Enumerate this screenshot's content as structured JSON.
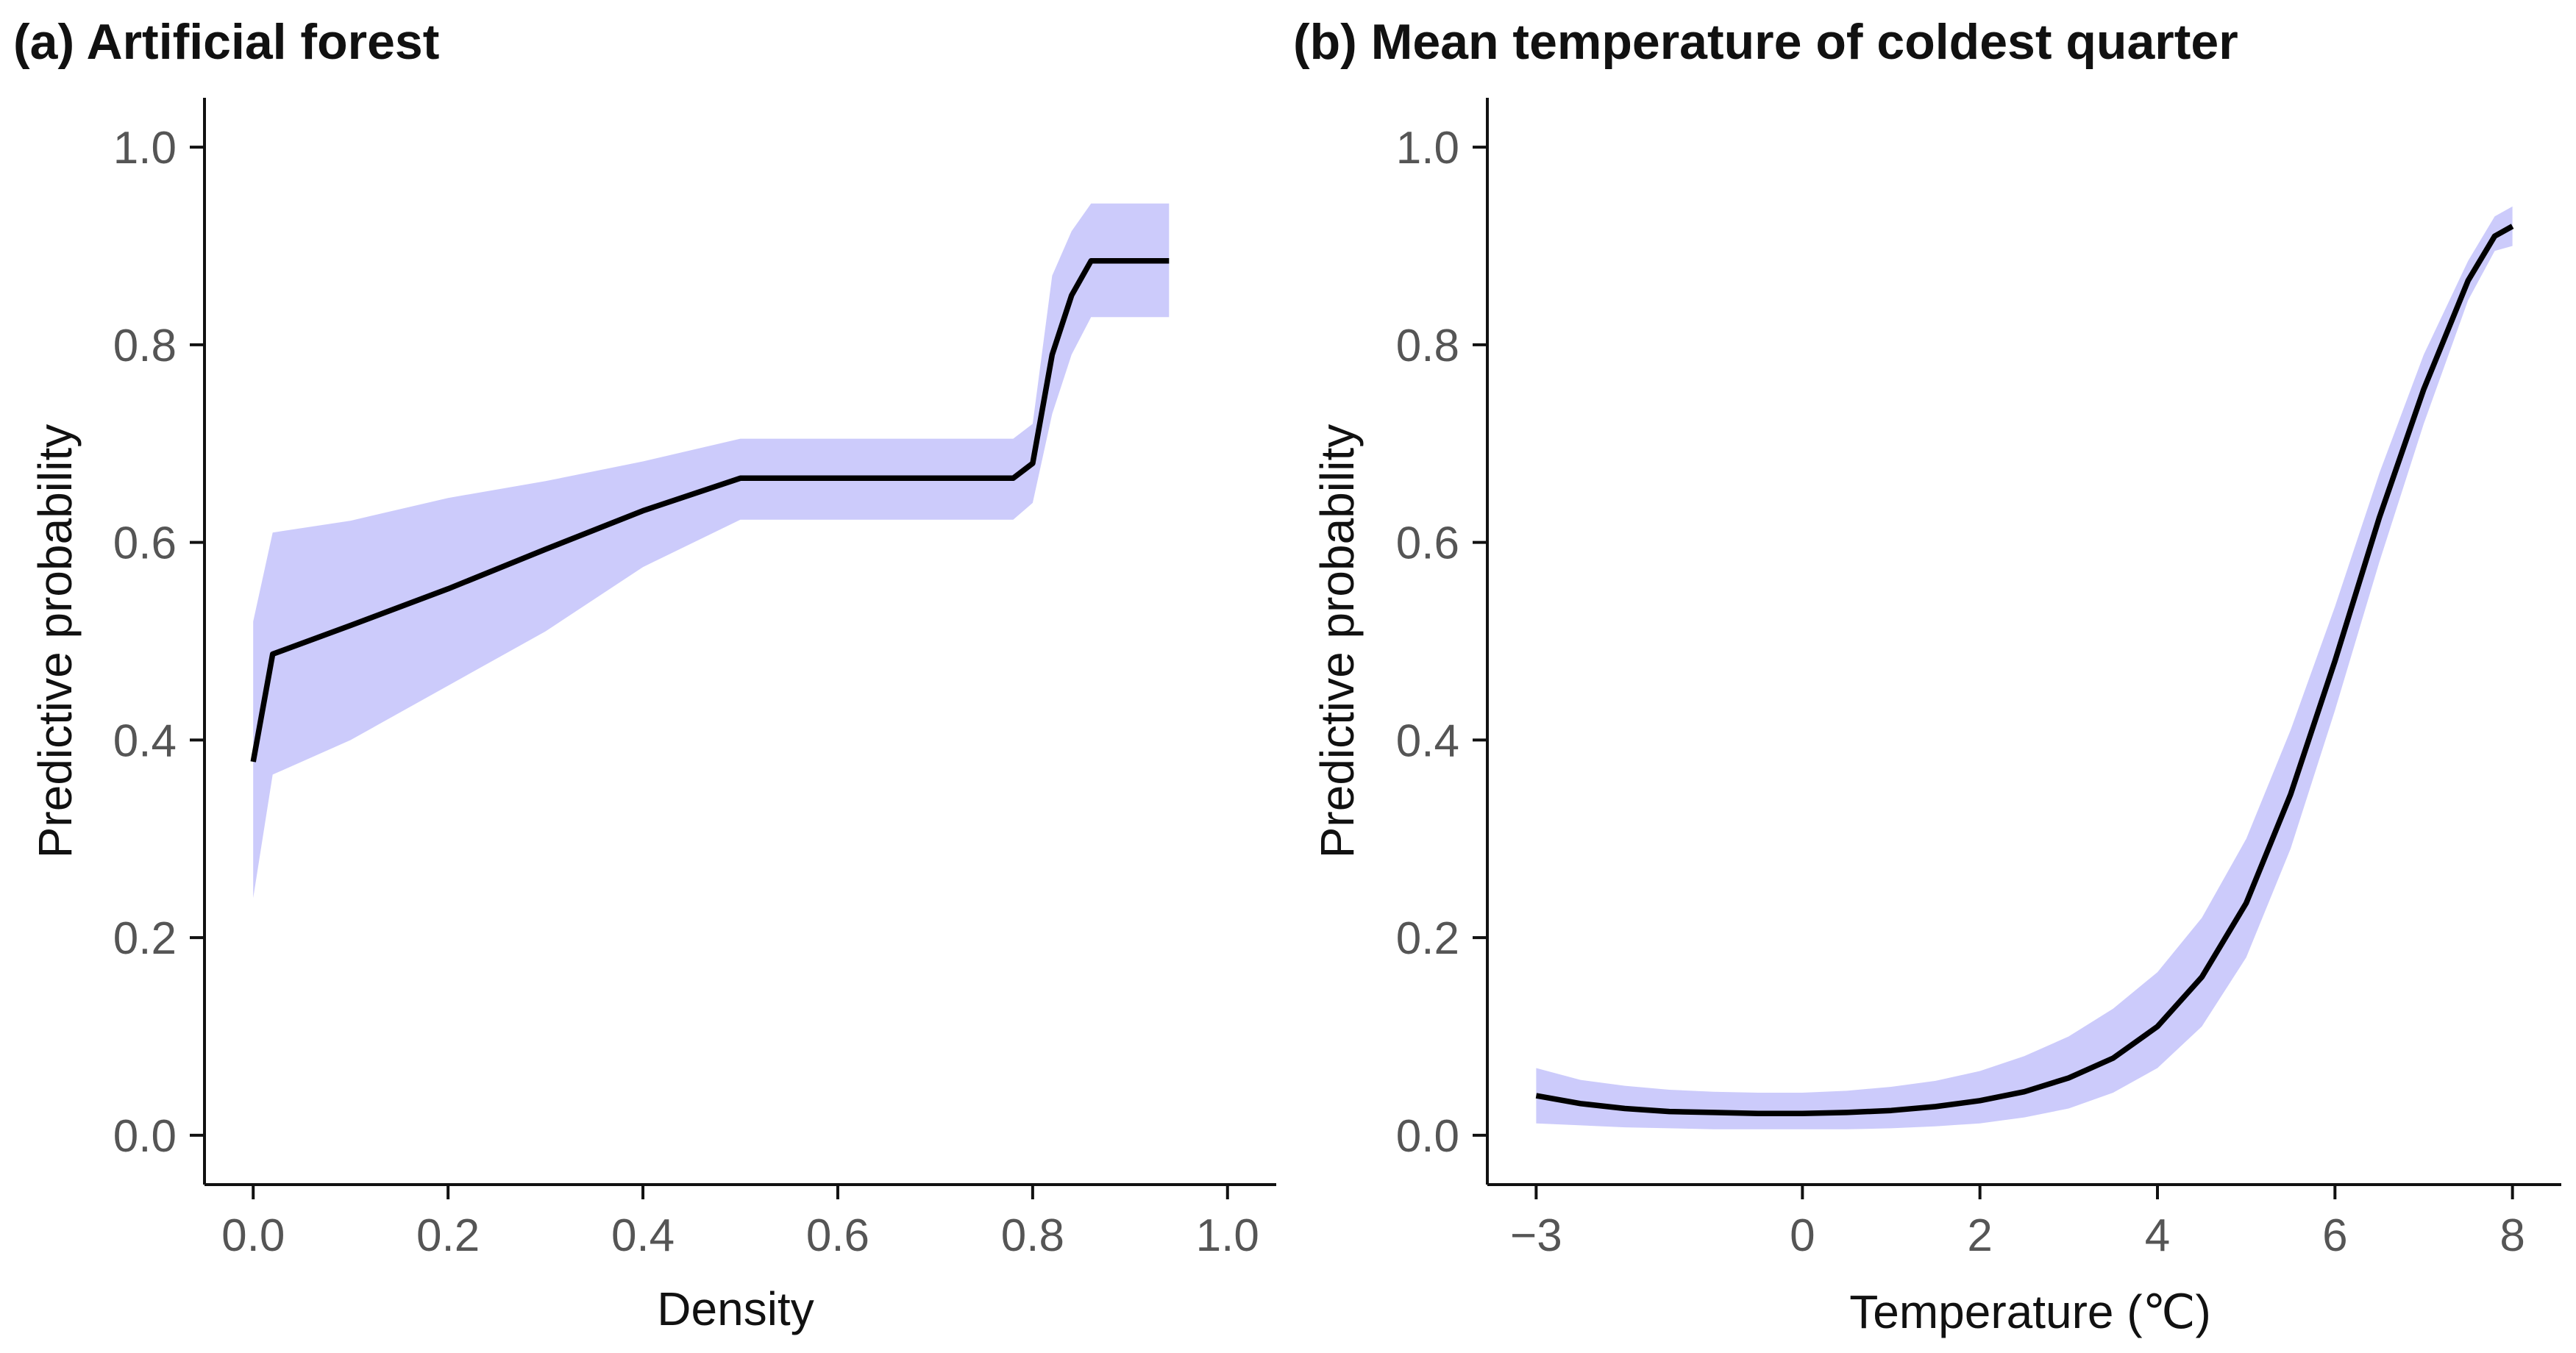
{
  "colors": {
    "band": "#cccbfb",
    "line": "#000000"
  },
  "chart_data": [
    {
      "type": "line",
      "title": "(a) Artificial forest",
      "xlabel": "Density",
      "ylabel": "Predictive probability",
      "xlim": [
        -0.05,
        1.05
      ],
      "ylim": [
        -0.05,
        1.05
      ],
      "xticks": [
        0.0,
        0.2,
        0.4,
        0.6,
        0.8,
        1.0
      ],
      "xtick_labels": [
        "0.0",
        "0.2",
        "0.4",
        "0.6",
        "0.8",
        "1.0"
      ],
      "yticks": [
        0.0,
        0.2,
        0.4,
        0.6,
        0.8,
        1.0
      ],
      "ytick_labels": [
        "0.0",
        "0.2",
        "0.4",
        "0.6",
        "0.8",
        "1.0"
      ],
      "series": [
        {
          "name": "Predictive probability",
          "x": [
            0.0,
            0.02,
            0.1,
            0.2,
            0.3,
            0.4,
            0.5,
            0.6,
            0.7,
            0.78,
            0.8,
            0.82,
            0.84,
            0.86,
            0.9,
            0.94
          ],
          "y": [
            0.378,
            0.487,
            0.516,
            0.553,
            0.593,
            0.632,
            0.665,
            0.665,
            0.665,
            0.665,
            0.68,
            0.79,
            0.85,
            0.885,
            0.885,
            0.885
          ],
          "lower": [
            0.24,
            0.365,
            0.4,
            0.455,
            0.51,
            0.575,
            0.623,
            0.623,
            0.623,
            0.623,
            0.64,
            0.73,
            0.79,
            0.828,
            0.828,
            0.828
          ],
          "upper": [
            0.52,
            0.61,
            0.622,
            0.645,
            0.662,
            0.682,
            0.705,
            0.705,
            0.705,
            0.705,
            0.72,
            0.87,
            0.915,
            0.943,
            0.943,
            0.943
          ]
        }
      ]
    },
    {
      "type": "line",
      "title": "(b) Mean temperature of coldest quarter",
      "xlabel": "Temperature (℃)",
      "ylabel": "Predictive probability",
      "xlim": [
        -3.55,
        8.55
      ],
      "ylim": [
        -0.05,
        1.05
      ],
      "xticks": [
        -3,
        0,
        2,
        4,
        6,
        8
      ],
      "xtick_labels": [
        "−3",
        "0",
        "2",
        "4",
        "6",
        "8"
      ],
      "yticks": [
        0.0,
        0.2,
        0.4,
        0.6,
        0.8,
        1.0
      ],
      "ytick_labels": [
        "0.0",
        "0.2",
        "0.4",
        "0.6",
        "0.8",
        "1.0"
      ],
      "series": [
        {
          "name": "Predictive probability",
          "x": [
            -3,
            -2.5,
            -2,
            -1.5,
            -1,
            -0.5,
            0,
            0.5,
            1,
            1.5,
            2,
            2.5,
            3,
            3.5,
            4,
            4.5,
            5,
            5.5,
            6,
            6.5,
            7,
            7.5,
            7.8,
            8.0
          ],
          "y": [
            0.04,
            0.032,
            0.027,
            0.024,
            0.023,
            0.022,
            0.022,
            0.023,
            0.025,
            0.029,
            0.035,
            0.044,
            0.058,
            0.078,
            0.11,
            0.16,
            0.235,
            0.345,
            0.48,
            0.625,
            0.755,
            0.865,
            0.91,
            0.92
          ],
          "lower": [
            0.012,
            0.01,
            0.008,
            0.007,
            0.006,
            0.006,
            0.006,
            0.006,
            0.007,
            0.009,
            0.012,
            0.018,
            0.027,
            0.043,
            0.068,
            0.11,
            0.18,
            0.29,
            0.43,
            0.58,
            0.72,
            0.845,
            0.895,
            0.9
          ],
          "upper": [
            0.068,
            0.056,
            0.05,
            0.046,
            0.044,
            0.043,
            0.043,
            0.045,
            0.049,
            0.055,
            0.065,
            0.08,
            0.1,
            0.128,
            0.165,
            0.22,
            0.3,
            0.41,
            0.535,
            0.67,
            0.79,
            0.885,
            0.93,
            0.94
          ]
        }
      ]
    }
  ]
}
